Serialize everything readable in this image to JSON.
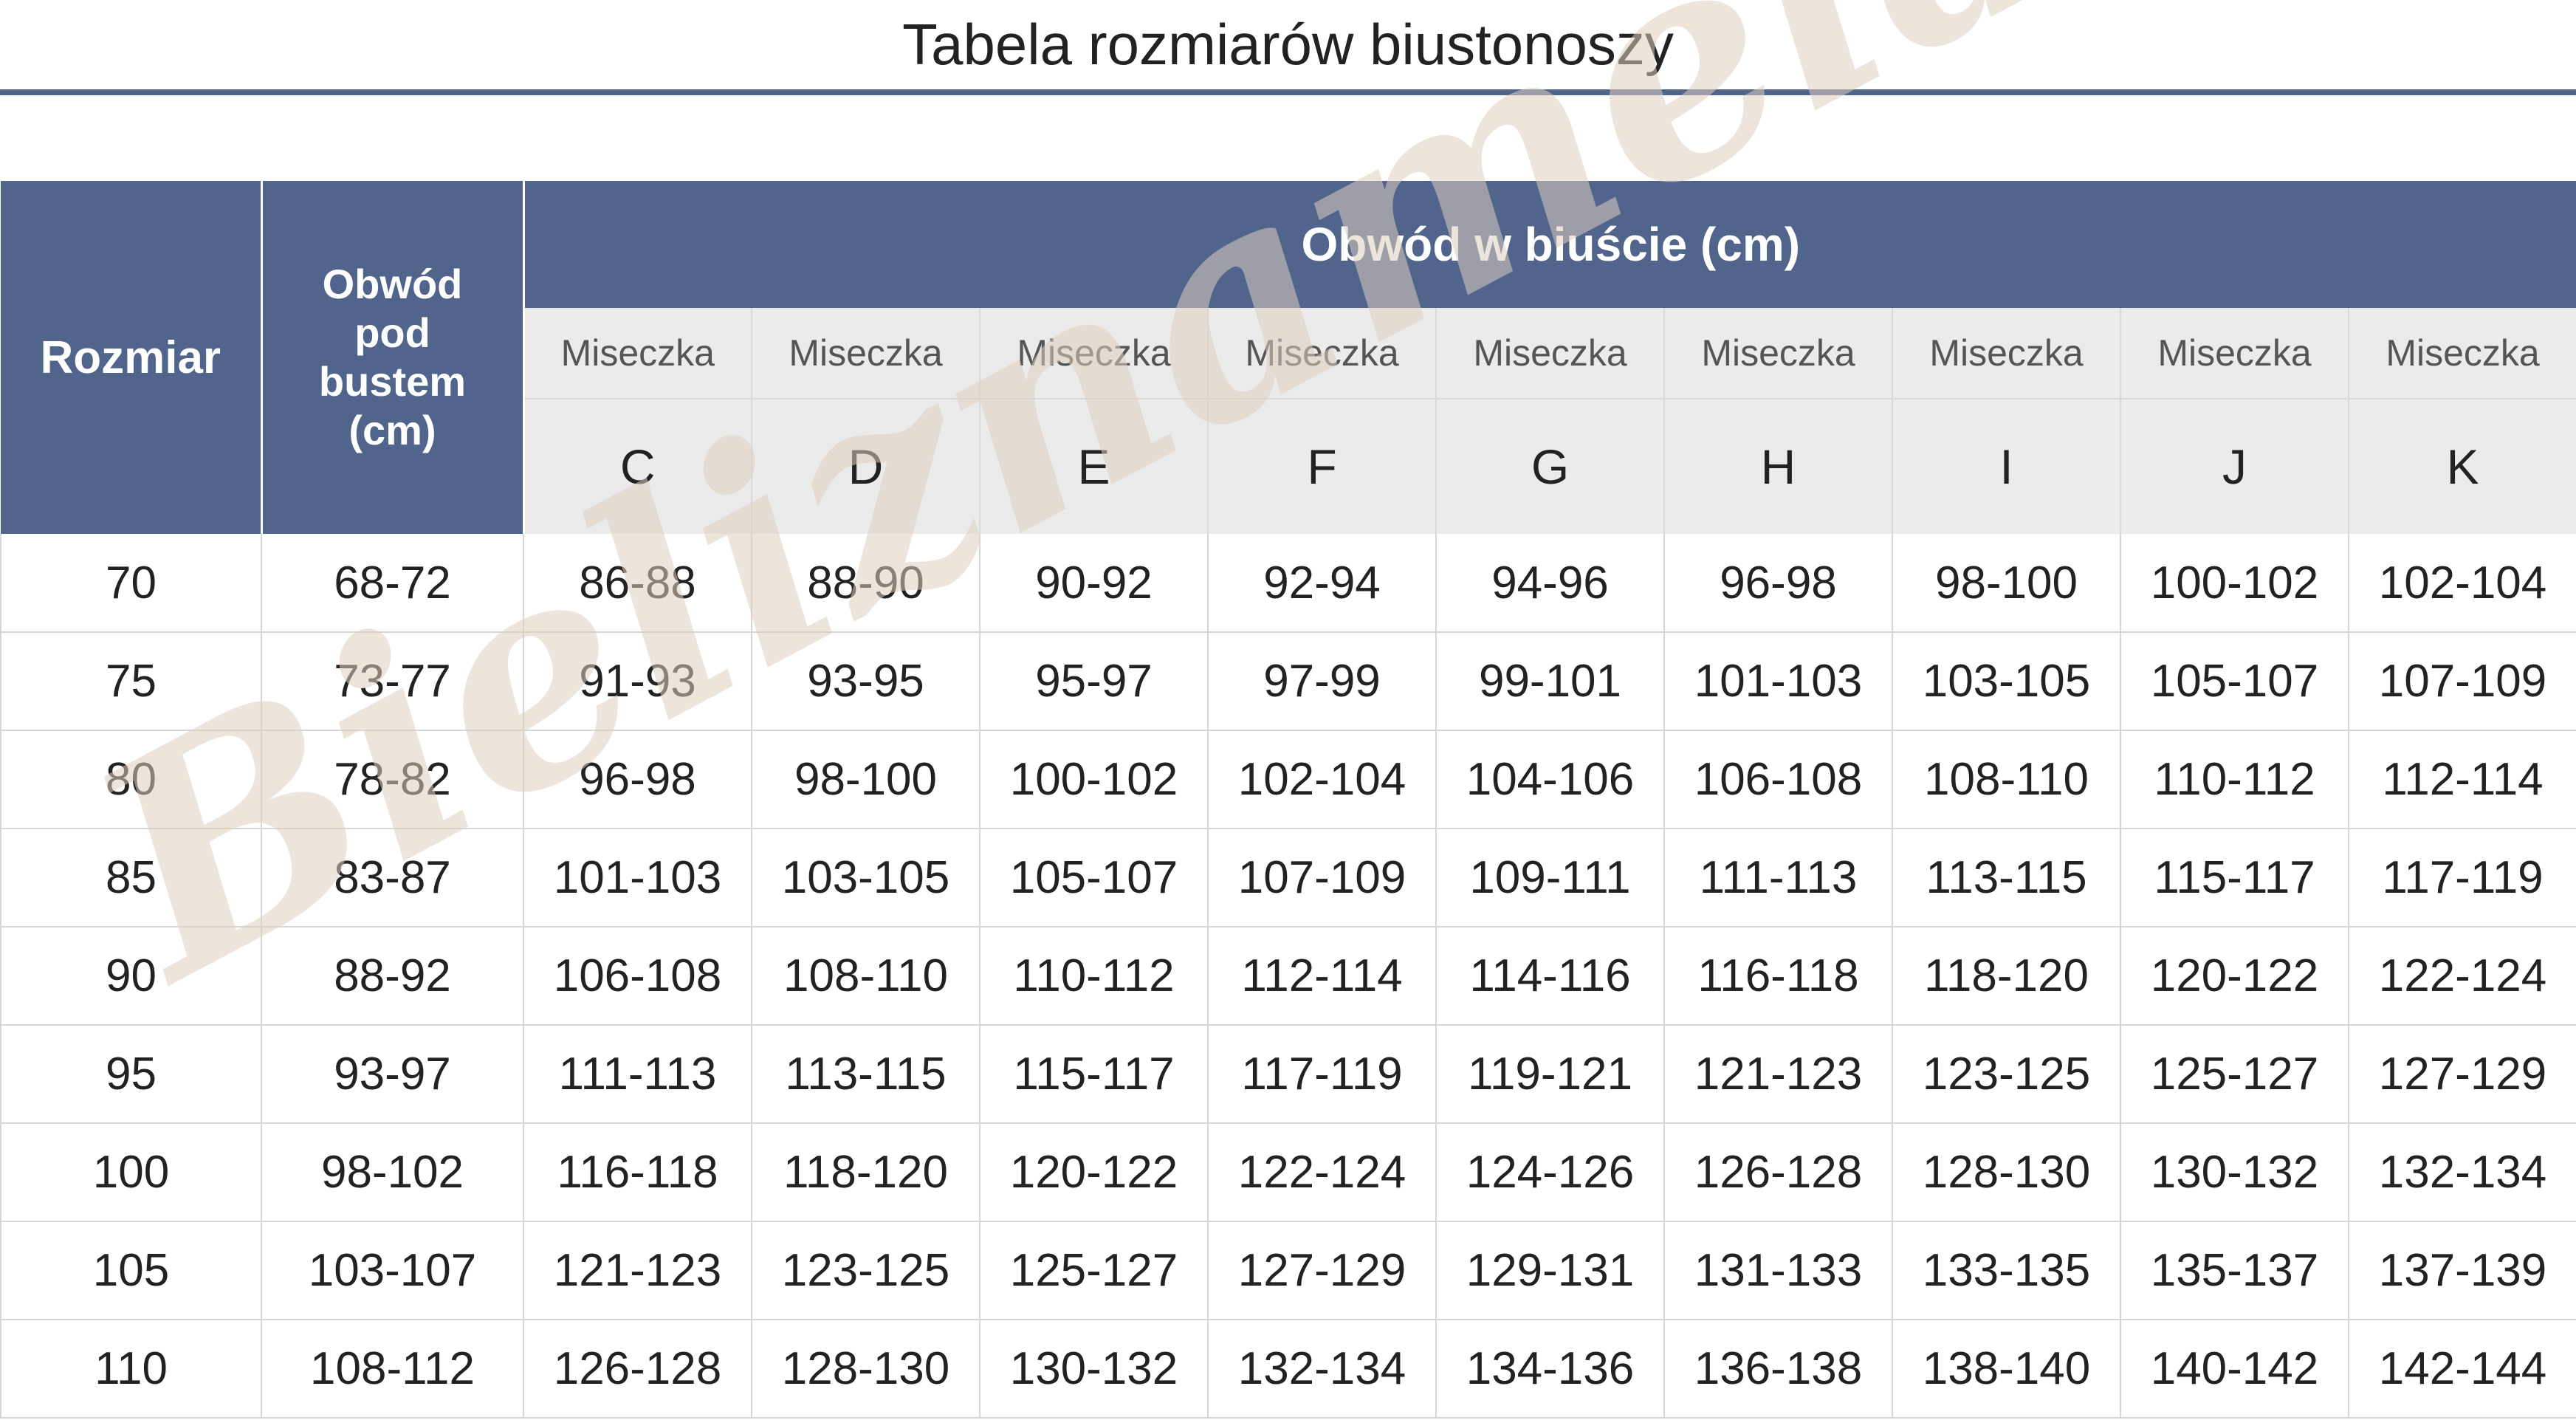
{
  "title": "Tabela rozmiarów biustonoszy",
  "watermark": "Bieliznamela",
  "colors": {
    "header_blue": "#51658c",
    "cup_header_gray": "#ebebeb",
    "grid_line": "#d6d6d6",
    "watermark": "#decec0"
  },
  "table": {
    "header_size": "Rozmiar",
    "header_underbust": "Obwód pod bustem (cm)",
    "header_bust": "Obwód w biuście (cm)",
    "cup_word": "Miseczka",
    "cups": [
      "C",
      "D",
      "E",
      "F",
      "G",
      "H",
      "I",
      "J",
      "K"
    ],
    "rows": [
      {
        "size": "70",
        "underbust": "68-72",
        "bust": [
          "86-88",
          "88-90",
          "90-92",
          "92-94",
          "94-96",
          "96-98",
          "98-100",
          "100-102",
          "102-104"
        ]
      },
      {
        "size": "75",
        "underbust": "73-77",
        "bust": [
          "91-93",
          "93-95",
          "95-97",
          "97-99",
          "99-101",
          "101-103",
          "103-105",
          "105-107",
          "107-109"
        ]
      },
      {
        "size": "80",
        "underbust": "78-82",
        "bust": [
          "96-98",
          "98-100",
          "100-102",
          "102-104",
          "104-106",
          "106-108",
          "108-110",
          "110-112",
          "112-114"
        ]
      },
      {
        "size": "85",
        "underbust": "83-87",
        "bust": [
          "101-103",
          "103-105",
          "105-107",
          "107-109",
          "109-111",
          "111-113",
          "113-115",
          "115-117",
          "117-119"
        ]
      },
      {
        "size": "90",
        "underbust": "88-92",
        "bust": [
          "106-108",
          "108-110",
          "110-112",
          "112-114",
          "114-116",
          "116-118",
          "118-120",
          "120-122",
          "122-124"
        ]
      },
      {
        "size": "95",
        "underbust": "93-97",
        "bust": [
          "111-113",
          "113-115",
          "115-117",
          "117-119",
          "119-121",
          "121-123",
          "123-125",
          "125-127",
          "127-129"
        ]
      },
      {
        "size": "100",
        "underbust": "98-102",
        "bust": [
          "116-118",
          "118-120",
          "120-122",
          "122-124",
          "124-126",
          "126-128",
          "128-130",
          "130-132",
          "132-134"
        ]
      },
      {
        "size": "105",
        "underbust": "103-107",
        "bust": [
          "121-123",
          "123-125",
          "125-127",
          "127-129",
          "129-131",
          "131-133",
          "133-135",
          "135-137",
          "137-139"
        ]
      },
      {
        "size": "110",
        "underbust": "108-112",
        "bust": [
          "126-128",
          "128-130",
          "130-132",
          "132-134",
          "134-136",
          "136-138",
          "138-140",
          "140-142",
          "142-144"
        ]
      }
    ]
  }
}
